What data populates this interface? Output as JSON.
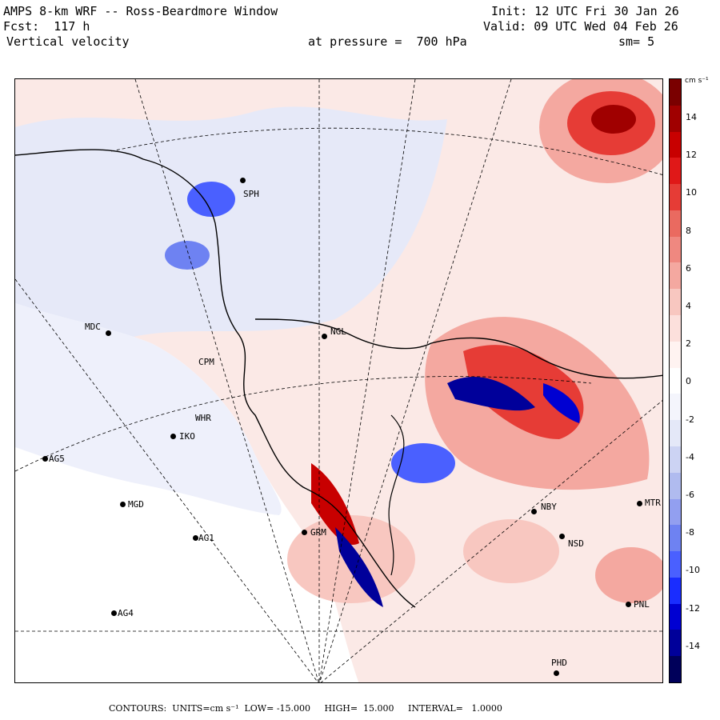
{
  "header": {
    "line1_left": "AMPS 8-km WRF -- Ross-Beardmore Window",
    "line2_left": "Fcst:  117 h",
    "line3_left": "Vertical velocity",
    "line1_right": "Init: 12 UTC Fri 30 Jan 26",
    "line2_right": "Valid: 09 UTC Wed 04 Feb 26",
    "line3_center": "at pressure =  700 hPa",
    "line3_right": "sm= 5"
  },
  "colorbar": {
    "units": "cm s⁻¹",
    "ticks": [
      "14",
      "12",
      "10",
      "8",
      "6",
      "4",
      "2",
      "0",
      "-2",
      "-4",
      "-6",
      "-8",
      "-10",
      "-12",
      "-14"
    ],
    "colors": [
      "#00005a",
      "#00009a",
      "#0000d2",
      "#1a2dff",
      "#4a60ff",
      "#6e82f2",
      "#929ff0",
      "#b0bbef",
      "#ccd3f3",
      "#e4e8f8",
      "#f4f5fc",
      "#ffffff",
      "#fff3f1",
      "#fce0dc",
      "#f8c7c0",
      "#f4a8a0",
      "#ef8880",
      "#ea6a60",
      "#e63c36",
      "#e01818",
      "#c80000",
      "#a00000",
      "#7a0000"
    ]
  },
  "stations": [
    {
      "name": "SPH",
      "label": "SPH"
    },
    {
      "name": "NGL",
      "label": "NGL"
    },
    {
      "name": "MDC",
      "label": "MDC"
    },
    {
      "name": "IKO",
      "label": "IKO"
    },
    {
      "name": "AG5",
      "label": "AG5"
    },
    {
      "name": "MGD",
      "label": "MGD"
    },
    {
      "name": "AG1",
      "label": "AG1"
    },
    {
      "name": "AG4",
      "label": "AG4"
    },
    {
      "name": "GRM",
      "label": "GRM"
    },
    {
      "name": "NBY",
      "label": "NBY"
    },
    {
      "name": "NSD",
      "label": "NSD"
    },
    {
      "name": "MTR",
      "label": "MTR"
    },
    {
      "name": "PNL",
      "label": "PNL"
    },
    {
      "name": "CPM",
      "label": "CPM"
    },
    {
      "name": "WHR",
      "label": "WHR"
    },
    {
      "name": "PHD",
      "label": "PHD"
    }
  ],
  "footer": {
    "label": "CONTOURS:  UNITS=cm s⁻¹  LOW= -15.000     HIGH=  15.000     INTERVAL=   1.0000"
  }
}
